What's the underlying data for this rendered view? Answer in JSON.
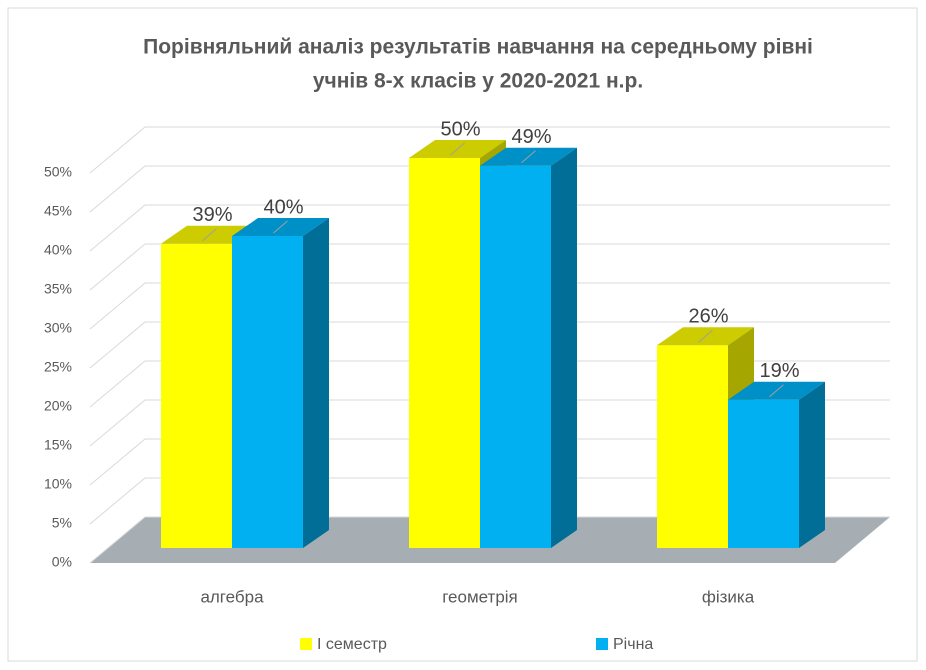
{
  "chart_data": {
    "type": "bar3d",
    "title": [
      "Порівняльний аналіз результатів навчання на середньому рівні",
      "учнів 8-х класів у 2020-2021 н.р."
    ],
    "categories": [
      "алгебра",
      "геометрія",
      "фізика"
    ],
    "series": [
      {
        "name": "І семестр",
        "color": "#ffff00",
        "values": [
          39,
          50,
          26
        ],
        "value_labels": [
          "39%",
          "50%",
          "26%"
        ]
      },
      {
        "name": "Річна",
        "color": "#00b0f0",
        "values": [
          40,
          49,
          19
        ],
        "value_labels": [
          "40%",
          "49%",
          "19%"
        ]
      }
    ],
    "ylim": [
      0,
      50
    ],
    "yticks": [
      {
        "value": 0,
        "label": "0%"
      },
      {
        "value": 5,
        "label": "5%"
      },
      {
        "value": 10,
        "label": "10%"
      },
      {
        "value": 15,
        "label": "15%"
      },
      {
        "value": 20,
        "label": "20%"
      },
      {
        "value": 25,
        "label": "25%"
      },
      {
        "value": 30,
        "label": "30%"
      },
      {
        "value": 35,
        "label": "35%"
      },
      {
        "value": 40,
        "label": "40%"
      },
      {
        "value": 45,
        "label": "45%"
      },
      {
        "value": 50,
        "label": "50%"
      }
    ],
    "grid": true,
    "legend": "bottom"
  }
}
